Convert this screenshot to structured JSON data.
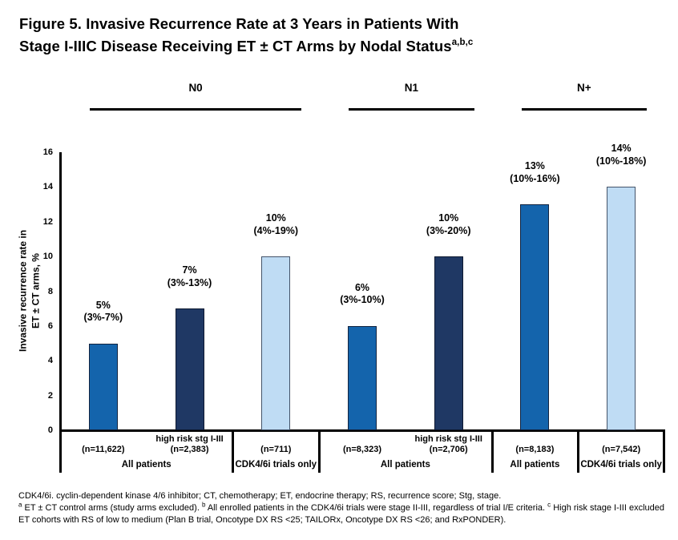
{
  "figure": {
    "title_line1": "Figure 5. Invasive Recurrence Rate at 3 Years in Patients With",
    "title_line2": "Stage I-IIIC Disease Receiving ET ± CT Arms by Nodal Status",
    "title_superscript": "a,b,c"
  },
  "chart_data": {
    "type": "bar",
    "ylabel_line1": "Invasive recurrence rate in",
    "ylabel_line2": "ET ± CT arms, %",
    "ylim": [
      0,
      16
    ],
    "yticks": [
      0,
      2,
      4,
      6,
      8,
      10,
      12,
      14,
      16
    ],
    "grid": false,
    "legend_position": "none",
    "axis_color": "#000000",
    "nodal_groups": [
      {
        "label": "N0",
        "cells": [
          0,
          1
        ]
      },
      {
        "label": "N1",
        "cells": [
          2
        ]
      },
      {
        "label": "N+",
        "cells": [
          3,
          4
        ]
      }
    ],
    "cells": [
      {
        "group_label": "All patients",
        "bars": [
          {
            "value": 5,
            "value_label": "5%",
            "ci_label": "(3%-7%)",
            "n_label": "(n=11,622)",
            "risk_label": "",
            "fill": "#1464ac",
            "border": "#12233f"
          },
          {
            "value": 7,
            "value_label": "7%",
            "ci_label": "(3%-13%)",
            "n_label": "(n=2,383)",
            "risk_label": "high risk stg I-III",
            "fill": "#1f3864",
            "border": "#0d1830"
          }
        ]
      },
      {
        "group_label": "CDK4/6i trials only",
        "bars": [
          {
            "value": 10,
            "value_label": "10%",
            "ci_label": "(4%-19%)",
            "n_label": "(n=711)",
            "risk_label": "",
            "fill": "#bfdcf4",
            "border": "#44546a"
          }
        ]
      },
      {
        "group_label": "All patients",
        "bars": [
          {
            "value": 6,
            "value_label": "6%",
            "ci_label": "(3%-10%)",
            "n_label": "(n=8,323)",
            "risk_label": "",
            "fill": "#1464ac",
            "border": "#12233f"
          },
          {
            "value": 10,
            "value_label": "10%",
            "ci_label": "(3%-20%)",
            "n_label": "(n=2,706)",
            "risk_label": "high risk stg I-III",
            "fill": "#1f3864",
            "border": "#0d1830"
          }
        ]
      },
      {
        "group_label": "All patients",
        "bars": [
          {
            "value": 13,
            "value_label": "13%",
            "ci_label": "(10%-16%)",
            "n_label": "(n=8,183)",
            "risk_label": "",
            "fill": "#1464ac",
            "border": "#12233f"
          }
        ]
      },
      {
        "group_label": "CDK4/6i trials only",
        "bars": [
          {
            "value": 14,
            "value_label": "14%",
            "ci_label": "(10%-18%)",
            "n_label": "(n=7,542)",
            "risk_label": "",
            "fill": "#bfdcf4",
            "border": "#44546a"
          }
        ]
      }
    ]
  },
  "footnotes": {
    "abbreviations": "CDK4/6i. cyclin-dependent kinase 4/6 inhibitor; CT, chemotherapy; ET, endocrine therapy; RS, recurrence score; Stg, stage.",
    "lettered": [
      {
        "sup": "a",
        "text": "ET ± CT control arms (study arms excluded). "
      },
      {
        "sup": "b",
        "text": "All enrolled patients in the CDK4/6i trials were stage II-III, regardless of trial I/E criteria. "
      },
      {
        "sup": "c",
        "text": "High risk stage I-III excluded ET cohorts with RS of low to medium (Plan B trial, Oncotype DX RS <25; TAILORx, Oncotype DX RS <26; and RxPONDER)."
      }
    ]
  }
}
